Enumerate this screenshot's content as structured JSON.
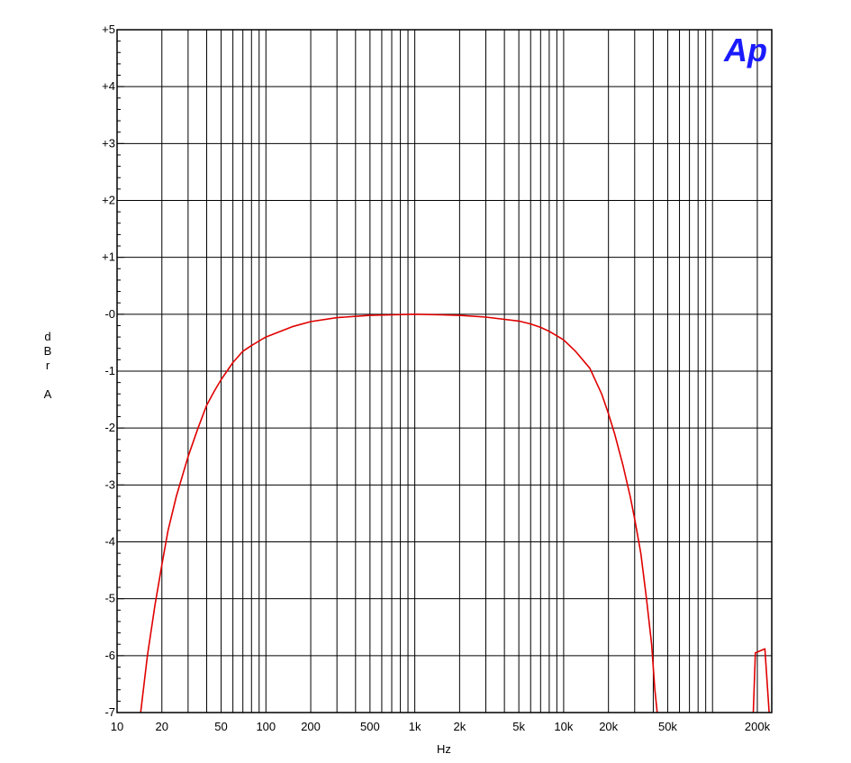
{
  "chart_data": {
    "type": "line",
    "title": "",
    "xlabel": "Hz",
    "ylabel": "dBr A",
    "x_scale": "log",
    "xlim": [
      10,
      250000
    ],
    "ylim": [
      -7,
      5
    ],
    "grid": true,
    "x_tick_labels": [
      {
        "value": 10,
        "label": "10"
      },
      {
        "value": 20,
        "label": "20"
      },
      {
        "value": 50,
        "label": "50"
      },
      {
        "value": 100,
        "label": "100"
      },
      {
        "value": 200,
        "label": "200"
      },
      {
        "value": 500,
        "label": "500"
      },
      {
        "value": 1000,
        "label": "1k"
      },
      {
        "value": 2000,
        "label": "2k"
      },
      {
        "value": 5000,
        "label": "5k"
      },
      {
        "value": 10000,
        "label": "10k"
      },
      {
        "value": 20000,
        "label": "20k"
      },
      {
        "value": 50000,
        "label": "50k"
      },
      {
        "value": 200000,
        "label": "200k"
      }
    ],
    "y_tick_labels": [
      {
        "value": 5,
        "label": "+5"
      },
      {
        "value": 4,
        "label": "+4"
      },
      {
        "value": 3,
        "label": "+3"
      },
      {
        "value": 2,
        "label": "+2"
      },
      {
        "value": 1,
        "label": "+1"
      },
      {
        "value": 0,
        "label": "-0"
      },
      {
        "value": -1,
        "label": "-1"
      },
      {
        "value": -2,
        "label": "-2"
      },
      {
        "value": -3,
        "label": "-3"
      },
      {
        "value": -4,
        "label": "-4"
      },
      {
        "value": -5,
        "label": "-5"
      },
      {
        "value": -6,
        "label": "-6"
      },
      {
        "value": -7,
        "label": "-7"
      }
    ],
    "series": [
      {
        "color": "#e00000",
        "segments": [
          [
            [
              14.4,
              -7.0
            ],
            [
              16,
              -6.0
            ],
            [
              18,
              -5.1
            ],
            [
              20,
              -4.4
            ],
            [
              22,
              -3.8
            ],
            [
              25,
              -3.2
            ],
            [
              30,
              -2.5
            ],
            [
              35,
              -2.0
            ],
            [
              40,
              -1.6
            ],
            [
              45,
              -1.35
            ],
            [
              50,
              -1.15
            ],
            [
              60,
              -0.85
            ],
            [
              70,
              -0.65
            ],
            [
              80,
              -0.55
            ],
            [
              90,
              -0.47
            ],
            [
              100,
              -0.4
            ],
            [
              150,
              -0.22
            ],
            [
              200,
              -0.13
            ],
            [
              300,
              -0.06
            ],
            [
              500,
              -0.02
            ],
            [
              700,
              -0.01
            ],
            [
              1000,
              0.0
            ],
            [
              1500,
              -0.01
            ],
            [
              2000,
              -0.02
            ],
            [
              3000,
              -0.05
            ],
            [
              5000,
              -0.12
            ],
            [
              6000,
              -0.17
            ],
            [
              7000,
              -0.23
            ],
            [
              8000,
              -0.3
            ],
            [
              9000,
              -0.38
            ],
            [
              10000,
              -0.45
            ],
            [
              12000,
              -0.65
            ],
            [
              15000,
              -0.95
            ],
            [
              18000,
              -1.4
            ],
            [
              20000,
              -1.75
            ],
            [
              22000,
              -2.1
            ],
            [
              25000,
              -2.65
            ],
            [
              28000,
              -3.2
            ],
            [
              30000,
              -3.6
            ],
            [
              33000,
              -4.2
            ],
            [
              36000,
              -5.0
            ],
            [
              39000,
              -5.8
            ],
            [
              41000,
              -6.6
            ],
            [
              42500,
              -7.0
            ]
          ],
          [
            [
              188000,
              -7.0
            ],
            [
              194000,
              -5.95
            ],
            [
              225000,
              -5.88
            ],
            [
              240000,
              -7.0
            ]
          ]
        ]
      }
    ]
  },
  "logo": {
    "text": "Ap",
    "color": "#1a1aff"
  }
}
